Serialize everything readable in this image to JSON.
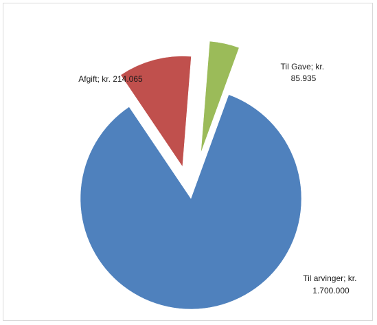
{
  "chart_data": {
    "type": "pie",
    "exploded": true,
    "legend": "none",
    "slices": [
      {
        "name": "Til arvinger",
        "value": 1700000,
        "color": "#4F81BD",
        "label_lines": [
          "Til arvinger; kr.",
          "1.700.000"
        ]
      },
      {
        "name": "Afgift",
        "value": 214065,
        "color": "#C0504D",
        "label_lines": [
          "Afgift; kr. 214.065"
        ]
      },
      {
        "name": "Til Gave",
        "value": 85935,
        "color": "#9BBB59",
        "label_lines": [
          "Til Gave; kr.",
          "85.935"
        ]
      }
    ]
  }
}
